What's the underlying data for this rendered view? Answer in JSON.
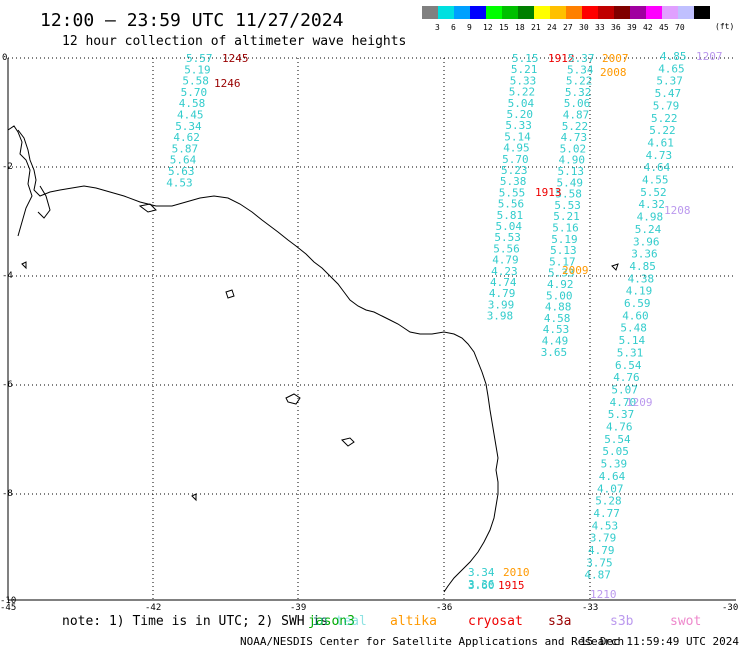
{
  "header": {
    "title": "12:00 — 23:59 UTC 11/27/2024",
    "subtitle": "12 hour collection of altimeter wave heights"
  },
  "legend": {
    "unit": "(ft)",
    "colors": [
      "#808080",
      "#00e0e0",
      "#00a0ff",
      "#0000ff",
      "#00ff00",
      "#00c000",
      "#008000",
      "#ffff00",
      "#ffc000",
      "#ff8000",
      "#ff0000",
      "#c00000",
      "#800000",
      "#a000a0",
      "#ff00ff",
      "#e0a0ff",
      "#c0c0ff",
      "#000000"
    ],
    "labels": [
      "3",
      "6",
      "9",
      "12",
      "15",
      "18",
      "21",
      "24",
      "27",
      "30",
      "33",
      "36",
      "39",
      "42",
      "45",
      "70"
    ]
  },
  "axes": {
    "x_labels": [
      "-45",
      "-42",
      "-39",
      "-36",
      "-33",
      "-30"
    ],
    "y_labels": [
      "0",
      "-2",
      "-4",
      "-6",
      "-8",
      "-10"
    ]
  },
  "palette": {
    "swh": "#33cccc",
    "jason3": "#00aa00",
    "altika": "#ff9900",
    "cryosat": "#ee0000",
    "s3a": "#990000",
    "s3b": "#bb99ee",
    "swot": "#ee88cc"
  },
  "tracks": [
    {
      "id": "t1",
      "time": "1245",
      "time_color": "s3a",
      "values": [
        "5.57",
        "5.19",
        "5.58",
        "5.70",
        "4.58",
        "4.45",
        "5.34",
        "4.62",
        "5.87",
        "5.64",
        "5.63",
        "4.53"
      ]
    },
    {
      "id": "t2",
      "time": "1246",
      "time_color": "s3a",
      "values": []
    },
    {
      "id": "t3",
      "time": "1912",
      "time_color": "cryosat",
      "values": [
        "5.15",
        "5.21",
        "5.33",
        "5.22",
        "5.04",
        "5.20",
        "5.33",
        "5.14",
        "4.95",
        "5.70",
        "5.23",
        "5.38",
        "5.55",
        "5.56",
        "5.81",
        "5.04",
        "5.53",
        "5.56",
        "4.79",
        "4.23",
        "4.74",
        "4.79",
        "3.99",
        "3.98"
      ]
    },
    {
      "id": "t4",
      "time": "1913",
      "time_color": "cryosat",
      "values": [
        "5.37",
        "5.34",
        "5.22",
        "5.32",
        "5.06",
        "4.87",
        "5.22",
        "4.73",
        "5.02",
        "4.90",
        "5.13",
        "5.49",
        "5.58",
        "5.53",
        "5.21",
        "5.16",
        "5.19",
        "5.13",
        "5.17",
        "5.33",
        "4.92",
        "5.00",
        "4.88",
        "4.58",
        "4.53",
        "4.49",
        "3.65"
      ]
    },
    {
      "id": "t5",
      "time": "2007",
      "time_color": "altika",
      "values": []
    },
    {
      "id": "t6",
      "time": "2008",
      "time_color": "altika",
      "values": []
    },
    {
      "id": "t7",
      "time": "2009",
      "time_color": "altika",
      "values": []
    },
    {
      "id": "t8",
      "time": "1207",
      "time_color": "s3b",
      "values": [
        "4.85",
        "4.65",
        "5.37",
        "5.47",
        "5.79",
        "5.22",
        "5.22",
        "4.61",
        "4.73",
        "4.64",
        "4.55",
        "5.52",
        "4.32",
        "4.98",
        "5.24",
        "3.96",
        "3.36",
        "4.85",
        "4.38",
        "4.19",
        "6.59",
        "4.60",
        "5.48",
        "5.14",
        "5.31",
        "6.54",
        "4.76",
        "5.07",
        "4.70",
        "5.37",
        "4.76",
        "5.54",
        "5.05",
        "5.39",
        "4.64",
        "4.07",
        "5.28",
        "4.77",
        "4.53",
        "3.79",
        "4.79",
        "3.75",
        "4.87"
      ]
    },
    {
      "id": "t9",
      "time": "1208",
      "time_color": "s3b",
      "values": []
    },
    {
      "id": "t10",
      "time": "1209",
      "time_color": "s3b",
      "values": []
    },
    {
      "id": "t11",
      "time": "1210",
      "time_color": "s3b",
      "values": []
    },
    {
      "id": "t12",
      "time": "2010",
      "time_color": "altika",
      "values": [
        "3.34",
        "3.36"
      ]
    },
    {
      "id": "t13",
      "time": "1915",
      "time_color": "cryosat",
      "values": [
        "3.60"
      ]
    }
  ],
  "note": {
    "prefix": "note: 1) Time is in UTC; 2) SWH is",
    "jason3": "jason3",
    "ssh_overlay": "in teal",
    "altika": "altika",
    "cryosat": "cryosat",
    "s3a": "s3a",
    "s3b": "s3b",
    "swot": "swot"
  },
  "footer": {
    "credit": "NOAA/NESDIS Center for Satellite Applications and Research",
    "timestamp": "15 Dec 11:59:49 UTC 2024"
  }
}
